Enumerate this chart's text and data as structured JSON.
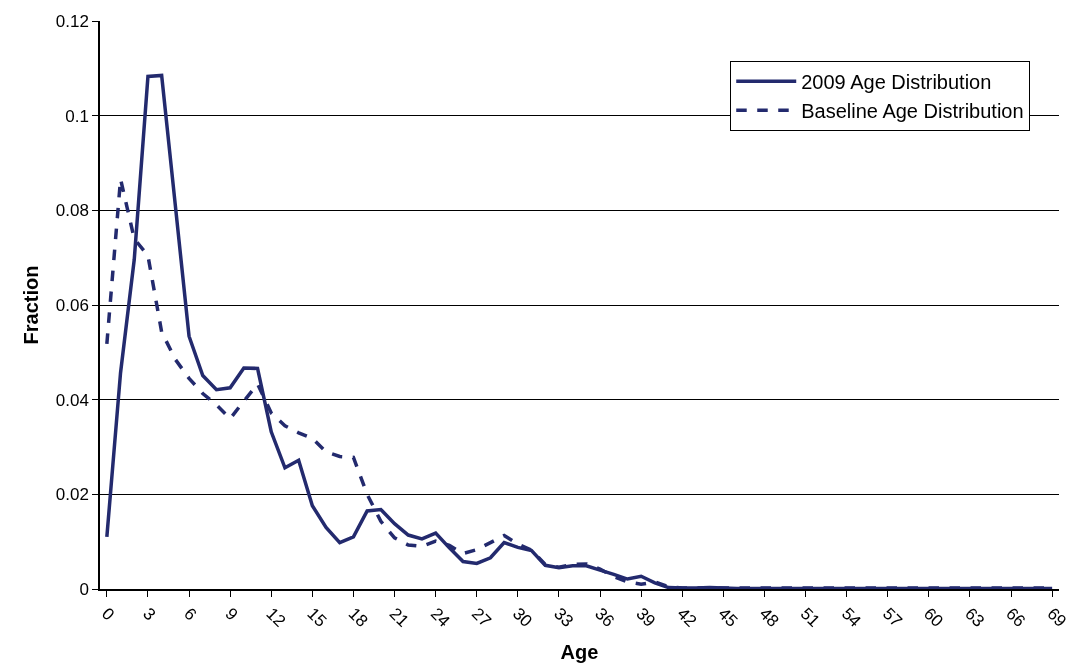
{
  "chart_data": {
    "type": "line",
    "xlabel": "Age",
    "ylabel": "Fraction",
    "x": [
      0,
      1,
      2,
      3,
      4,
      5,
      6,
      7,
      8,
      9,
      10,
      11,
      12,
      13,
      14,
      15,
      16,
      17,
      18,
      19,
      20,
      21,
      22,
      23,
      24,
      25,
      26,
      27,
      28,
      29,
      30,
      31,
      32,
      33,
      34,
      35,
      36,
      37,
      38,
      39,
      40,
      41,
      42,
      43,
      44,
      45,
      46,
      47,
      48,
      49,
      50,
      51,
      52,
      53,
      54,
      55,
      56,
      57,
      58,
      59,
      60,
      61,
      62,
      63,
      64,
      65,
      66,
      67,
      68,
      69
    ],
    "series": [
      {
        "name": "2009 Age Distribution",
        "color": "#232a6e",
        "line_style": "solid",
        "values": [
          0.011,
          0.0457,
          0.0696,
          0.1083,
          0.1085,
          0.081,
          0.0534,
          0.0451,
          0.0421,
          0.0425,
          0.0467,
          0.0466,
          0.0332,
          0.0256,
          0.0272,
          0.0176,
          0.013,
          0.0098,
          0.011,
          0.0165,
          0.0168,
          0.0138,
          0.0114,
          0.0106,
          0.0118,
          0.0087,
          0.0058,
          0.0054,
          0.0066,
          0.0098,
          0.0088,
          0.0081,
          0.005,
          0.0045,
          0.0049,
          0.0049,
          0.004,
          0.0031,
          0.0021,
          0.0027,
          0.0013,
          0.0003,
          0.0002,
          0.0002,
          0.0003,
          0.0002,
          0.0001,
          0.0001,
          0.0001,
          0.0001,
          0.0001,
          0.0001,
          0.0001,
          0.0001,
          0.0001,
          0.0001,
          0.0001,
          0.0001,
          0.0001,
          0.0001,
          0.0001,
          0.0001,
          0.0001,
          0.0001,
          0.0001,
          0.0001,
          0.0001,
          0.0001,
          0.0001,
          0.0001
        ]
      },
      {
        "name": "Baseline Age Distribution",
        "color": "#232a6e",
        "line_style": "dashed",
        "values": [
          0.0518,
          0.0866,
          0.074,
          0.0704,
          0.0543,
          0.0485,
          0.0445,
          0.0413,
          0.0389,
          0.036,
          0.0397,
          0.0433,
          0.0372,
          0.0345,
          0.033,
          0.0318,
          0.029,
          0.028,
          0.0278,
          0.02,
          0.0143,
          0.0108,
          0.0093,
          0.009,
          0.0101,
          0.0092,
          0.0075,
          0.0083,
          0.0098,
          0.0113,
          0.0095,
          0.0082,
          0.0052,
          0.0046,
          0.0052,
          0.0053,
          0.0042,
          0.0026,
          0.0015,
          0.001,
          0.0015,
          0.0005,
          0.0002,
          0.0002,
          0.0002,
          0.0002,
          0.0002,
          0.0002,
          0.0002,
          0.0002,
          0.0002,
          0.0002,
          0.0002,
          0.0002,
          0.0002,
          0.0002,
          0.0002,
          0.0002,
          0.0002,
          0.0002,
          0.0002,
          0.0002,
          0.0002,
          0.0002,
          0.0002,
          0.0002,
          0.0002,
          0.0002,
          0.0002,
          0.0002
        ]
      }
    ],
    "xlim": [
      -0.5,
      69.5
    ],
    "xticks": [
      0,
      3,
      6,
      9,
      12,
      15,
      18,
      21,
      24,
      27,
      30,
      33,
      36,
      39,
      42,
      45,
      48,
      51,
      54,
      57,
      60,
      63,
      66,
      69
    ],
    "ylim": [
      0,
      0.12
    ],
    "yticks": [
      0,
      0.02,
      0.04,
      0.06,
      0.08,
      {
        "value": 0.1,
        "label": "0.1"
      },
      0.12
    ],
    "grid": "y",
    "legend": "top right",
    "marker": "none"
  }
}
